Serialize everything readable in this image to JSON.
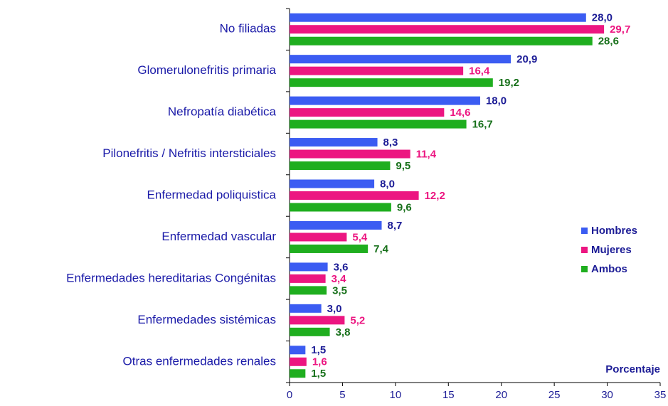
{
  "chart_data": {
    "type": "hbar",
    "xlabel": "Porcentaje",
    "categories": [
      "No filiadas",
      "Glomerulonefritis primaria",
      "Nefropatía diabética",
      "Pilonefritis / Nefritis intersticiales",
      "Enfermedad poliquistica",
      "Enfermedad vascular",
      "Enfermedades hereditarias Congénitas",
      "Enfermedades sistémicas",
      "Otras enfermedades renales"
    ],
    "series": [
      {
        "name": "Hombres",
        "color": "#3b5cf2",
        "label_color": "#1c1c96",
        "values": [
          28.0,
          20.9,
          18.0,
          8.3,
          8.0,
          8.7,
          3.6,
          3.0,
          1.5
        ],
        "value_labels": [
          "28,0",
          "20,9",
          "18,0",
          "8,3",
          "8,0",
          "8,7",
          "3,6",
          "3,0",
          "1,5"
        ]
      },
      {
        "name": "Mujeres",
        "color": "#ec1681",
        "label_color": "#ec1681",
        "values": [
          29.7,
          16.4,
          14.6,
          11.4,
          12.2,
          5.4,
          3.4,
          5.2,
          1.6
        ],
        "value_labels": [
          "29,7",
          "16,4",
          "14,6",
          "11,4",
          "12,2",
          "5,4",
          "3,4",
          "5,2",
          "1,6"
        ]
      },
      {
        "name": "Ambos",
        "color": "#1fae1f",
        "label_color": "#17701a",
        "values": [
          28.6,
          19.2,
          16.7,
          9.5,
          9.6,
          7.4,
          3.5,
          3.8,
          1.5
        ],
        "value_labels": [
          "28,6",
          "19,2",
          "16,7",
          "9,5",
          "9,6",
          "7,4",
          "3,5",
          "3,8",
          "1,5"
        ]
      }
    ],
    "xlim": [
      0,
      35
    ],
    "xticks": [
      0,
      5,
      10,
      15,
      20,
      25,
      30,
      35
    ],
    "legend": "right"
  }
}
